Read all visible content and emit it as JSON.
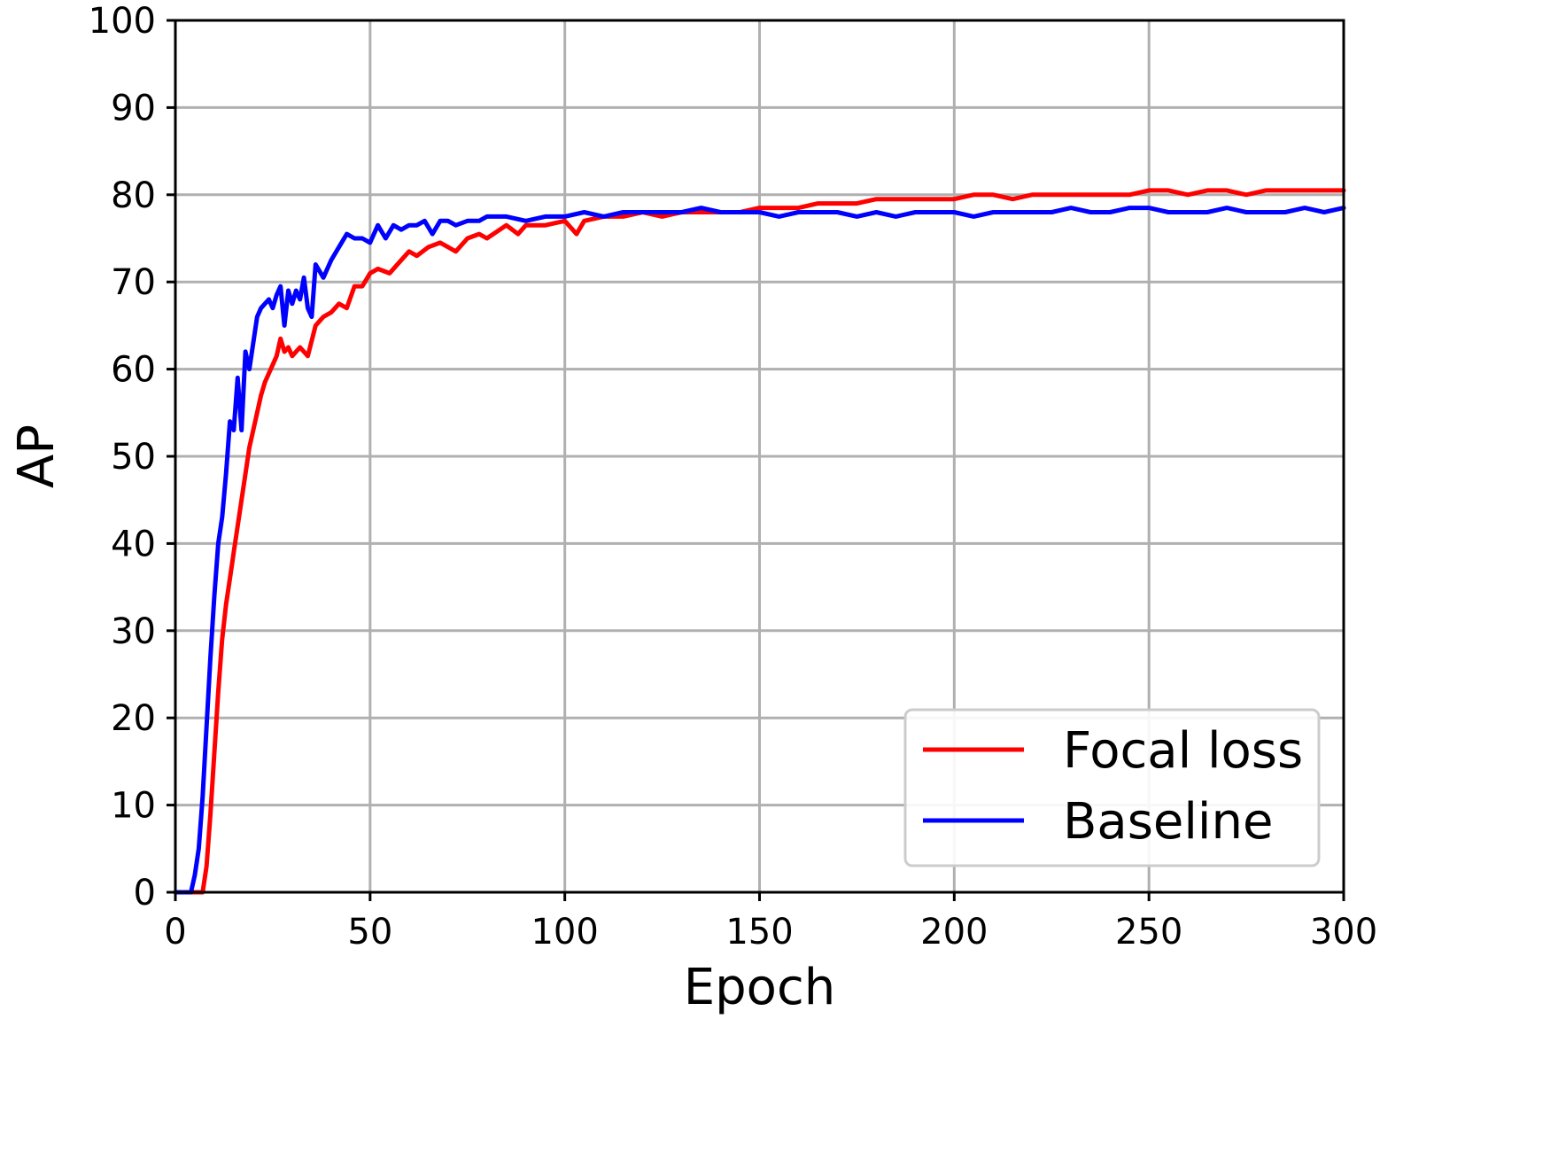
{
  "chart_data": {
    "type": "line",
    "title": "",
    "xlabel": "Epoch",
    "ylabel": "AP",
    "xlim": [
      0,
      300
    ],
    "ylim": [
      0,
      100
    ],
    "xticks": [
      0,
      50,
      100,
      150,
      200,
      250,
      300
    ],
    "yticks": [
      0,
      10,
      20,
      30,
      40,
      50,
      60,
      70,
      80,
      90,
      100
    ],
    "grid": true,
    "legend_position": "bottom-right",
    "series": [
      {
        "name": "Focal loss",
        "color": "#ff0000",
        "points": [
          [
            0,
            0
          ],
          [
            3,
            0
          ],
          [
            6,
            0
          ],
          [
            7,
            0
          ],
          [
            8,
            3
          ],
          [
            9,
            9
          ],
          [
            10,
            16
          ],
          [
            11,
            23
          ],
          [
            12,
            29
          ],
          [
            13,
            33
          ],
          [
            14,
            36
          ],
          [
            15,
            39
          ],
          [
            16,
            42
          ],
          [
            17,
            45
          ],
          [
            18,
            48
          ],
          [
            19,
            51
          ],
          [
            20,
            53
          ],
          [
            21,
            55
          ],
          [
            22,
            57
          ],
          [
            23,
            58.5
          ],
          [
            24,
            59.5
          ],
          [
            25,
            60.5
          ],
          [
            26,
            61.5
          ],
          [
            27,
            63.5
          ],
          [
            28,
            62
          ],
          [
            29,
            62.5
          ],
          [
            30,
            61.5
          ],
          [
            32,
            62.5
          ],
          [
            34,
            61.5
          ],
          [
            36,
            65
          ],
          [
            38,
            66
          ],
          [
            40,
            66.5
          ],
          [
            42,
            67.5
          ],
          [
            44,
            67
          ],
          [
            46,
            69.5
          ],
          [
            48,
            69.5
          ],
          [
            50,
            71
          ],
          [
            52,
            71.5
          ],
          [
            55,
            71
          ],
          [
            58,
            72.5
          ],
          [
            60,
            73.5
          ],
          [
            62,
            73
          ],
          [
            65,
            74
          ],
          [
            68,
            74.5
          ],
          [
            72,
            73.5
          ],
          [
            75,
            75
          ],
          [
            78,
            75.5
          ],
          [
            80,
            75
          ],
          [
            85,
            76.5
          ],
          [
            88,
            75.5
          ],
          [
            90,
            76.5
          ],
          [
            95,
            76.5
          ],
          [
            100,
            77
          ],
          [
            103,
            75.5
          ],
          [
            105,
            77
          ],
          [
            110,
            77.5
          ],
          [
            115,
            77.5
          ],
          [
            120,
            78
          ],
          [
            125,
            77.5
          ],
          [
            130,
            78
          ],
          [
            135,
            78
          ],
          [
            140,
            78
          ],
          [
            145,
            78
          ],
          [
            150,
            78.5
          ],
          [
            155,
            78.5
          ],
          [
            160,
            78.5
          ],
          [
            165,
            79
          ],
          [
            170,
            79
          ],
          [
            175,
            79
          ],
          [
            180,
            79.5
          ],
          [
            185,
            79.5
          ],
          [
            190,
            79.5
          ],
          [
            195,
            79.5
          ],
          [
            200,
            79.5
          ],
          [
            205,
            80
          ],
          [
            210,
            80
          ],
          [
            215,
            79.5
          ],
          [
            220,
            80
          ],
          [
            225,
            80
          ],
          [
            230,
            80
          ],
          [
            235,
            80
          ],
          [
            240,
            80
          ],
          [
            245,
            80
          ],
          [
            250,
            80.5
          ],
          [
            255,
            80.5
          ],
          [
            260,
            80
          ],
          [
            265,
            80.5
          ],
          [
            270,
            80.5
          ],
          [
            275,
            80
          ],
          [
            280,
            80.5
          ],
          [
            285,
            80.5
          ],
          [
            290,
            80.5
          ],
          [
            295,
            80.5
          ],
          [
            300,
            80.5
          ]
        ]
      },
      {
        "name": "Baseline",
        "color": "#0000ff",
        "points": [
          [
            0,
            0
          ],
          [
            2,
            0
          ],
          [
            3,
            0
          ],
          [
            4,
            0
          ],
          [
            5,
            2
          ],
          [
            6,
            5
          ],
          [
            7,
            11
          ],
          [
            8,
            19
          ],
          [
            9,
            27
          ],
          [
            10,
            34
          ],
          [
            11,
            40
          ],
          [
            12,
            43
          ],
          [
            13,
            48
          ],
          [
            14,
            54
          ],
          [
            15,
            53
          ],
          [
            16,
            59
          ],
          [
            17,
            53
          ],
          [
            18,
            62
          ],
          [
            19,
            60
          ],
          [
            20,
            63
          ],
          [
            21,
            66
          ],
          [
            22,
            67
          ],
          [
            23,
            67.5
          ],
          [
            24,
            68
          ],
          [
            25,
            67
          ],
          [
            26,
            68.5
          ],
          [
            27,
            69.5
          ],
          [
            28,
            65
          ],
          [
            29,
            69
          ],
          [
            30,
            67.5
          ],
          [
            31,
            69
          ],
          [
            32,
            68
          ],
          [
            33,
            70.5
          ],
          [
            34,
            67
          ],
          [
            35,
            66
          ],
          [
            36,
            72
          ],
          [
            38,
            70.5
          ],
          [
            40,
            72.5
          ],
          [
            42,
            74
          ],
          [
            44,
            75.5
          ],
          [
            46,
            75
          ],
          [
            48,
            75
          ],
          [
            50,
            74.5
          ],
          [
            52,
            76.5
          ],
          [
            54,
            75
          ],
          [
            56,
            76.5
          ],
          [
            58,
            76
          ],
          [
            60,
            76.5
          ],
          [
            62,
            76.5
          ],
          [
            64,
            77
          ],
          [
            66,
            75.5
          ],
          [
            68,
            77
          ],
          [
            70,
            77
          ],
          [
            72,
            76.5
          ],
          [
            75,
            77
          ],
          [
            78,
            77
          ],
          [
            80,
            77.5
          ],
          [
            85,
            77.5
          ],
          [
            90,
            77
          ],
          [
            95,
            77.5
          ],
          [
            100,
            77.5
          ],
          [
            105,
            78
          ],
          [
            110,
            77.5
          ],
          [
            115,
            78
          ],
          [
            120,
            78
          ],
          [
            125,
            78
          ],
          [
            130,
            78
          ],
          [
            135,
            78.5
          ],
          [
            140,
            78
          ],
          [
            145,
            78
          ],
          [
            150,
            78
          ],
          [
            155,
            77.5
          ],
          [
            160,
            78
          ],
          [
            165,
            78
          ],
          [
            170,
            78
          ],
          [
            175,
            77.5
          ],
          [
            180,
            78
          ],
          [
            185,
            77.5
          ],
          [
            190,
            78
          ],
          [
            195,
            78
          ],
          [
            200,
            78
          ],
          [
            205,
            77.5
          ],
          [
            210,
            78
          ],
          [
            215,
            78
          ],
          [
            220,
            78
          ],
          [
            225,
            78
          ],
          [
            230,
            78.5
          ],
          [
            235,
            78
          ],
          [
            240,
            78
          ],
          [
            245,
            78.5
          ],
          [
            250,
            78.5
          ],
          [
            255,
            78
          ],
          [
            260,
            78
          ],
          [
            265,
            78
          ],
          [
            270,
            78.5
          ],
          [
            275,
            78
          ],
          [
            280,
            78
          ],
          [
            285,
            78
          ],
          [
            290,
            78.5
          ],
          [
            295,
            78
          ],
          [
            300,
            78.5
          ]
        ]
      }
    ]
  }
}
